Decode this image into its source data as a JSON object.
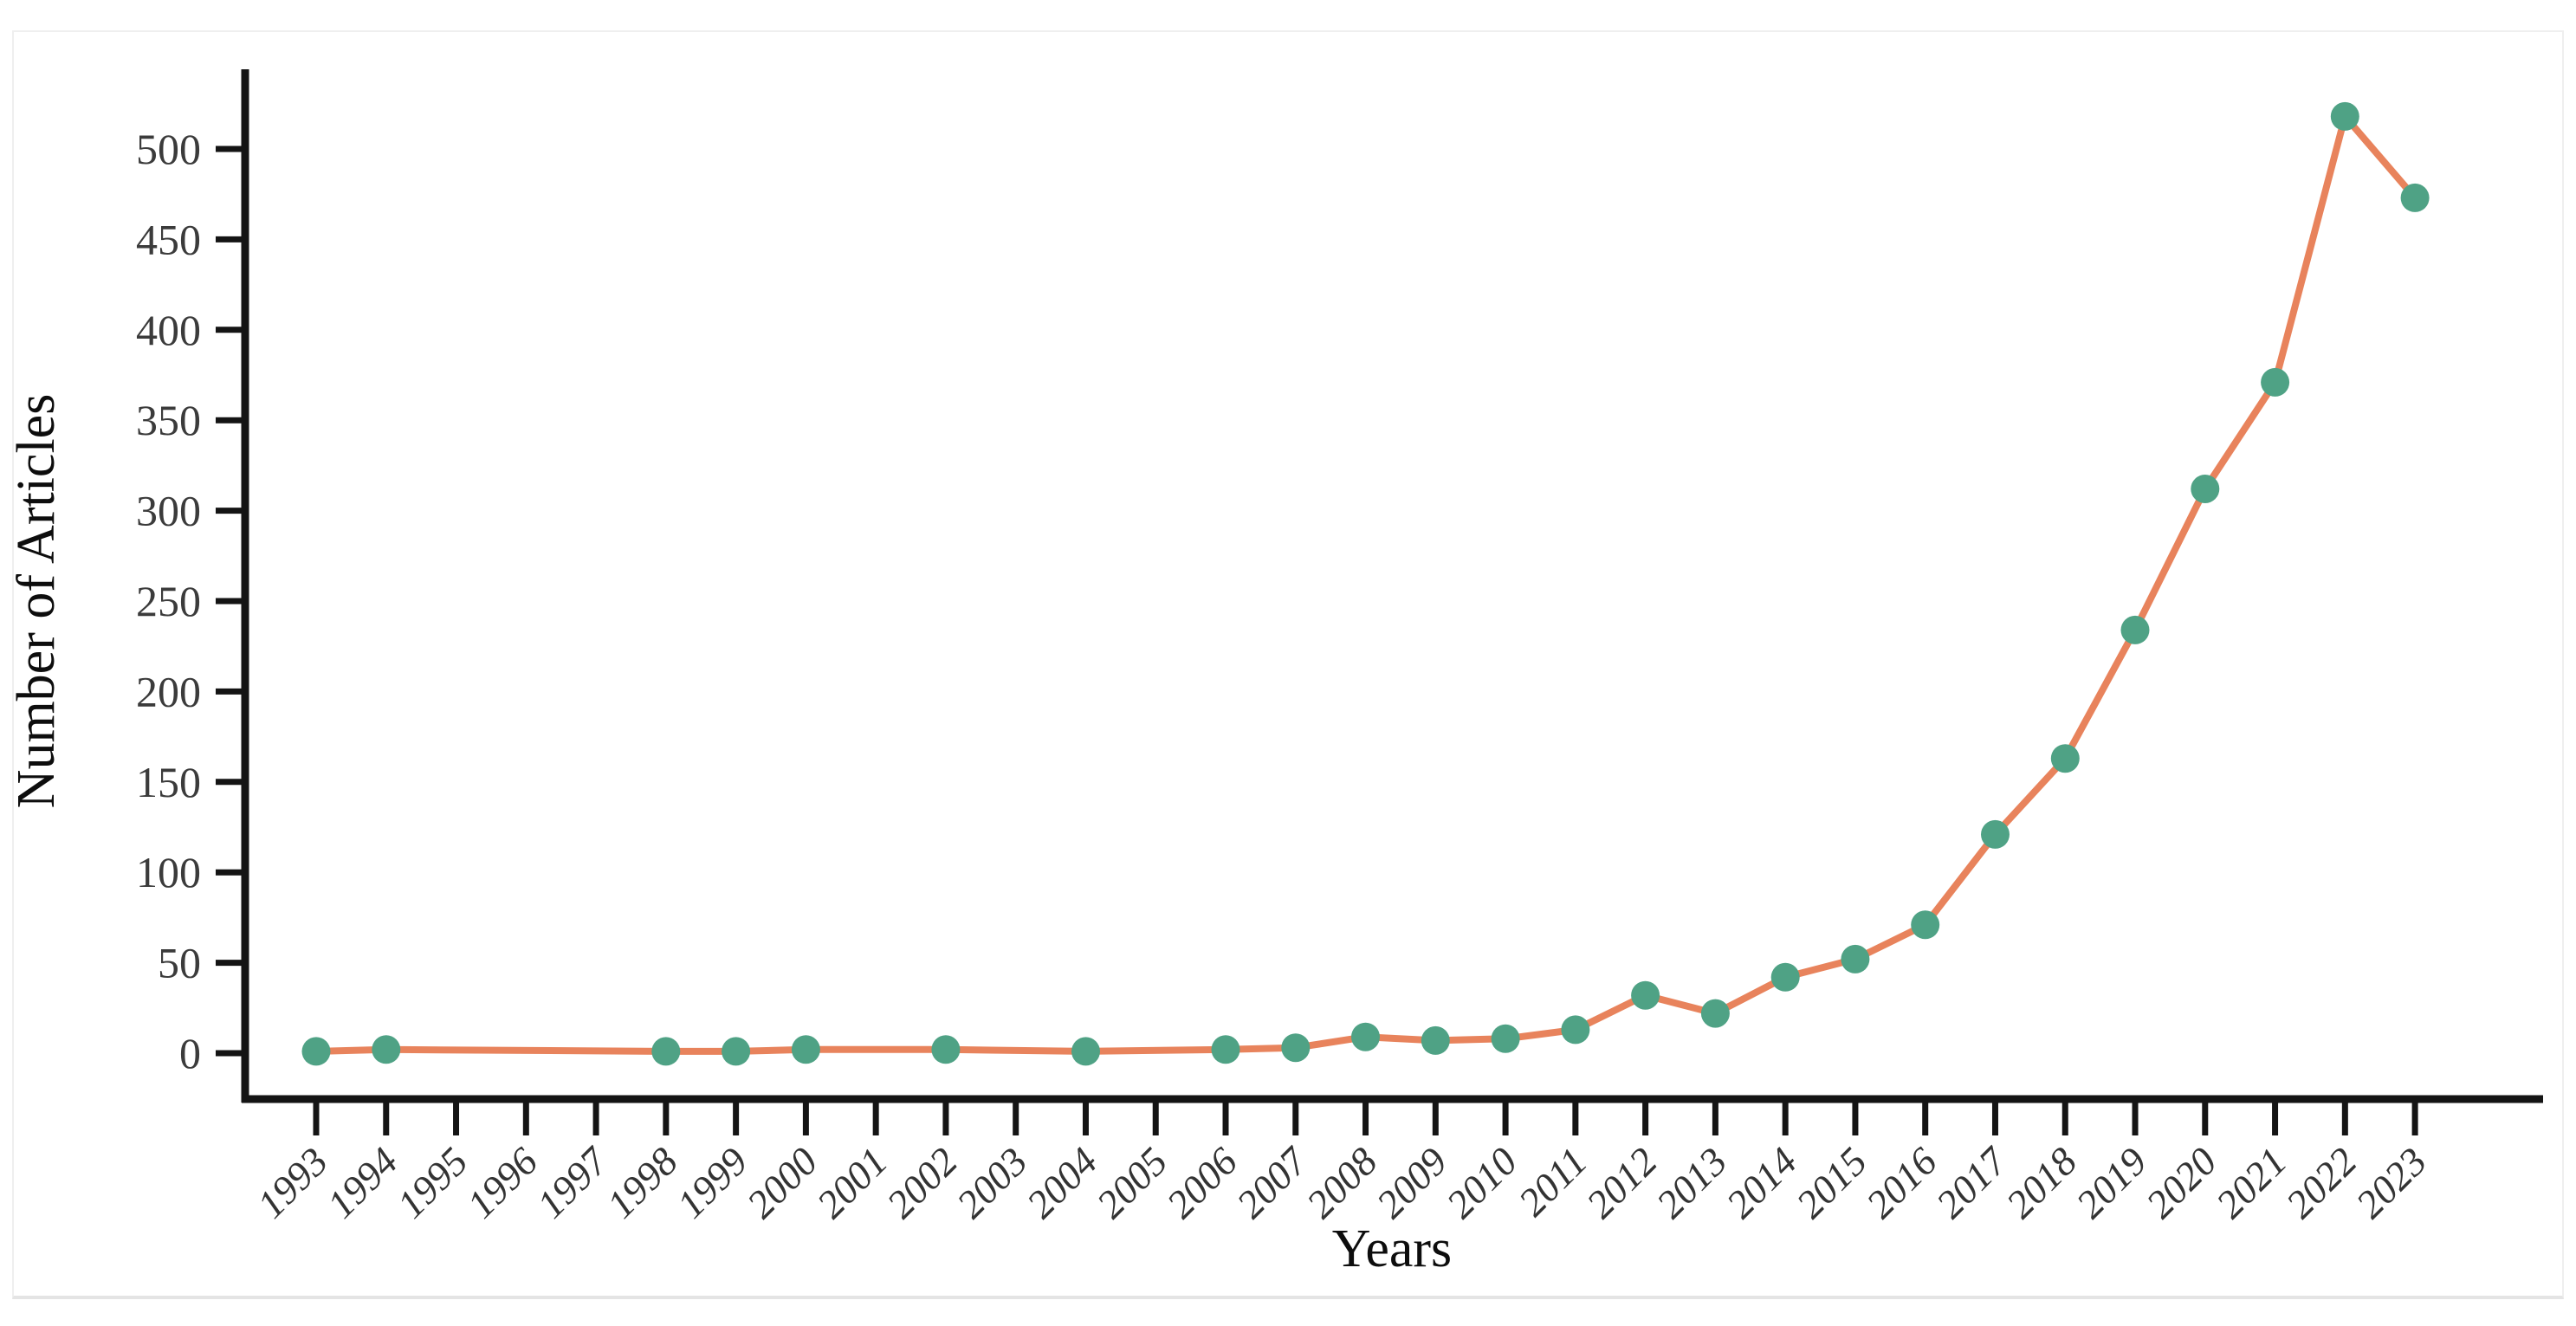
{
  "figure": {
    "background_color": "#ffffff",
    "panel_border_color": "#ececec"
  },
  "chart_data": {
    "type": "line",
    "title": "",
    "xlabel": "Years",
    "ylabel": "Number of Articles",
    "x_tick_labels": [
      "1993",
      "1994",
      "1995",
      "1996",
      "1997",
      "1998",
      "1999",
      "2000",
      "2001",
      "2002",
      "2003",
      "2004",
      "2005",
      "2006",
      "2007",
      "2008",
      "2009",
      "2010",
      "2011",
      "2012",
      "2013",
      "2014",
      "2015",
      "2016",
      "2017",
      "2018",
      "2019",
      "2020",
      "2021",
      "2022",
      "2023"
    ],
    "y_tick_values": [
      0,
      50,
      100,
      150,
      200,
      250,
      300,
      350,
      400,
      450,
      500
    ],
    "x_range_years": [
      1993,
      2023
    ],
    "ylim": [
      0,
      545
    ],
    "grid": false,
    "legend_position": "none",
    "line_color": "#E8835C",
    "marker_color": "#4FA285",
    "axis_color": "#141414",
    "series": [
      {
        "name": "Number of Articles",
        "points": [
          [
            1993,
            1
          ],
          [
            1994,
            2
          ],
          [
            1998,
            1
          ],
          [
            1999,
            1
          ],
          [
            2000,
            2
          ],
          [
            2002,
            2
          ],
          [
            2004,
            1
          ],
          [
            2006,
            2
          ],
          [
            2007,
            3
          ],
          [
            2008,
            9
          ],
          [
            2009,
            7
          ],
          [
            2010,
            8
          ],
          [
            2011,
            13
          ],
          [
            2012,
            32
          ],
          [
            2013,
            22
          ],
          [
            2014,
            42
          ],
          [
            2015,
            52
          ],
          [
            2016,
            71
          ],
          [
            2017,
            121
          ],
          [
            2018,
            163
          ],
          [
            2019,
            234
          ],
          [
            2020,
            312
          ],
          [
            2021,
            371
          ],
          [
            2022,
            518
          ],
          [
            2023,
            473
          ]
        ]
      }
    ]
  }
}
